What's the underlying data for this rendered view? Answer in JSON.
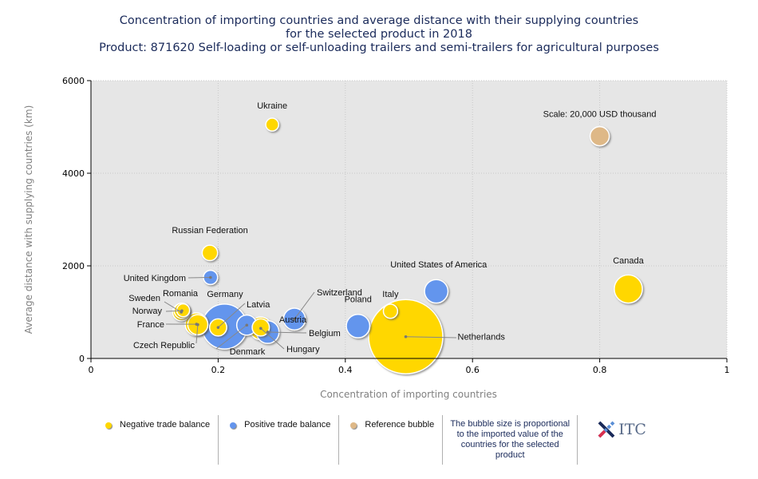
{
  "title": {
    "line1": "Concentration of importing countries and average distance with their supplying countries",
    "line2": "for the selected product in 2018",
    "line3": "Product: 871620 Self-loading or self-unloading trailers and semi-trailers for agricultural purposes"
  },
  "colors": {
    "negative": "#FFD700",
    "positive": "#6495ED",
    "reference": "#DEB887",
    "plot_bg": "#E6E6E6"
  },
  "chart_data": {
    "type": "scatter",
    "subtype": "bubble",
    "title": "Concentration of importing countries and average distance with their supplying countries for the selected product in 2018",
    "xlabel": "Concentration of importing countries",
    "ylabel": "Average distance with supplying countries (km)",
    "xlim": [
      0,
      1
    ],
    "ylim": [
      0,
      6000
    ],
    "xticks": [
      "0",
      "0.2",
      "0.4",
      "0.6",
      "0.8",
      "1"
    ],
    "yticks": [
      "0",
      "2000",
      "4000",
      "6000"
    ],
    "grid": true,
    "size_note": "Bubble size proportional to imported value; reference bubble = 20,000 USD thousand",
    "points": [
      {
        "name": "Ukraine",
        "x": 0.285,
        "y": 5050,
        "balance": "negative",
        "size": 9000
      },
      {
        "name": "Russian Federation",
        "x": 0.187,
        "y": 2280,
        "balance": "negative",
        "size": 13000
      },
      {
        "name": "United Kingdom",
        "x": 0.188,
        "y": 1750,
        "balance": "positive",
        "size": 11000
      },
      {
        "name": "Sweden",
        "x": 0.142,
        "y": 1000,
        "balance": "negative",
        "size": 16000
      },
      {
        "name": "Romania",
        "x": 0.145,
        "y": 1040,
        "balance": "negative",
        "size": 9000
      },
      {
        "name": "Norway",
        "x": 0.143,
        "y": 1030,
        "balance": "negative",
        "size": 13000
      },
      {
        "name": "France",
        "x": 0.166,
        "y": 740,
        "balance": "negative",
        "size": 28000
      },
      {
        "name": "Czech Republic",
        "x": 0.168,
        "y": 730,
        "balance": "negative",
        "size": 22000
      },
      {
        "name": "Germany",
        "x": 0.21,
        "y": 690,
        "balance": "positive",
        "size": 110000
      },
      {
        "name": "Latvia",
        "x": 0.2,
        "y": 670,
        "balance": "negative",
        "size": 16000
      },
      {
        "name": "Denmark",
        "x": 0.245,
        "y": 720,
        "balance": "positive",
        "size": 22000
      },
      {
        "name": "Hungary",
        "x": 0.267,
        "y": 650,
        "balance": "negative",
        "size": 28000
      },
      {
        "name": "Belgium",
        "x": 0.278,
        "y": 570,
        "balance": "positive",
        "size": 28000
      },
      {
        "name": "Austria",
        "x": 0.267,
        "y": 670,
        "balance": "negative",
        "size": 16000
      },
      {
        "name": "Switzerland",
        "x": 0.32,
        "y": 850,
        "balance": "positive",
        "size": 26000
      },
      {
        "name": "Poland",
        "x": 0.42,
        "y": 700,
        "balance": "positive",
        "size": 30000
      },
      {
        "name": "Italy",
        "x": 0.471,
        "y": 1020,
        "balance": "negative",
        "size": 11000
      },
      {
        "name": "Netherlands",
        "x": 0.495,
        "y": 470,
        "balance": "negative",
        "size": 300000
      },
      {
        "name": "United States of America",
        "x": 0.543,
        "y": 1450,
        "balance": "positive",
        "size": 30000
      },
      {
        "name": "Canada",
        "x": 0.845,
        "y": 1500,
        "balance": "negative",
        "size": 43000
      },
      {
        "name": "Scale: 20,000 USD thousand",
        "x": 0.8,
        "y": 4800,
        "balance": "reference",
        "size": 20000
      }
    ]
  },
  "legend": {
    "negative": "Negative trade balance",
    "positive": "Positive trade balance",
    "reference": "Reference bubble",
    "note": "The bubble size is proportional to the imported value of the countries for the selected product",
    "logo": "ITC"
  }
}
